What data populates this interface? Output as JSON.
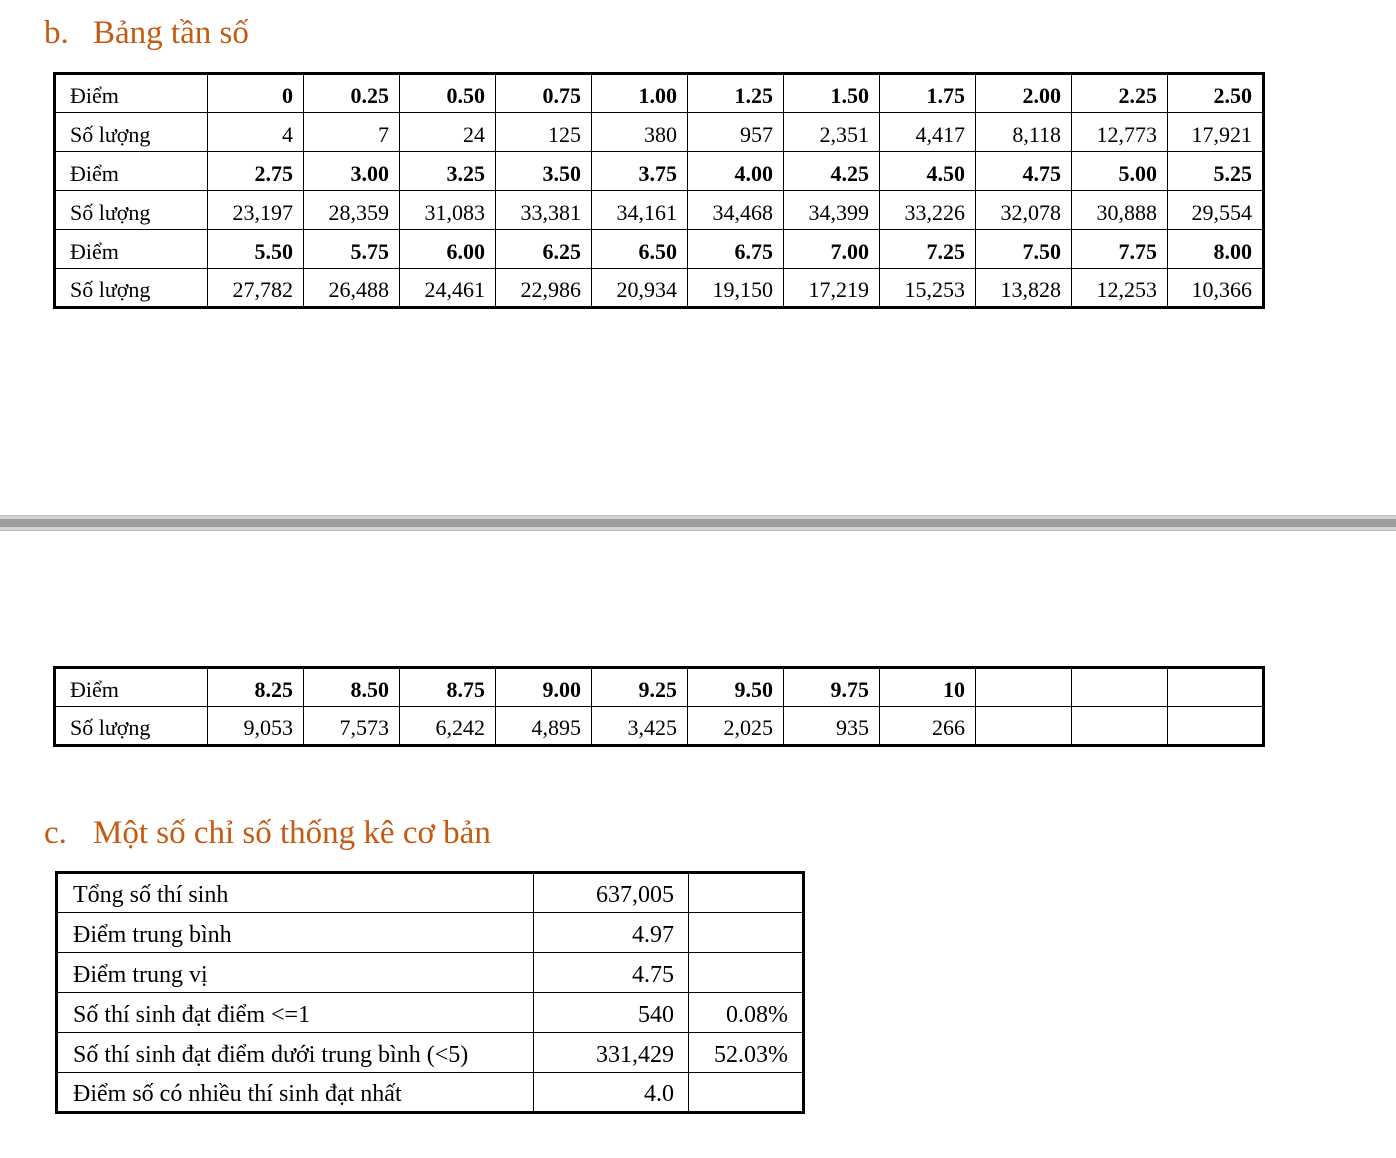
{
  "section_b": {
    "number": "b.",
    "title": "Bảng tần số"
  },
  "freq_tables": [
    {
      "rows": [
        {
          "label": "Điểm",
          "cells": [
            "0",
            "0.25",
            "0.50",
            "0.75",
            "1.00",
            "1.25",
            "1.50",
            "1.75",
            "2.00",
            "2.25",
            "2.50"
          ]
        },
        {
          "label": "Số lượng",
          "cells": [
            "4",
            "7",
            "24",
            "125",
            "380",
            "957",
            "2,351",
            "4,417",
            "8,118",
            "12,773",
            "17,921"
          ]
        },
        {
          "label": "Điểm",
          "cells": [
            "2.75",
            "3.00",
            "3.25",
            "3.50",
            "3.75",
            "4.00",
            "4.25",
            "4.50",
            "4.75",
            "5.00",
            "5.25"
          ]
        },
        {
          "label": "Số lượng",
          "cells": [
            "23,197",
            "28,359",
            "31,083",
            "33,381",
            "34,161",
            "34,468",
            "34,399",
            "33,226",
            "32,078",
            "30,888",
            "29,554"
          ]
        },
        {
          "label": "Điểm",
          "cells": [
            "5.50",
            "5.75",
            "6.00",
            "6.25",
            "6.50",
            "6.75",
            "7.00",
            "7.25",
            "7.50",
            "7.75",
            "8.00"
          ]
        },
        {
          "label": "Số lượng",
          "cells": [
            "27,782",
            "26,488",
            "24,461",
            "22,986",
            "20,934",
            "19,150",
            "17,219",
            "15,253",
            "13,828",
            "12,253",
            "10,366"
          ]
        }
      ]
    },
    {
      "rows": [
        {
          "label": "Điểm",
          "cells": [
            "8.25",
            "8.50",
            "8.75",
            "9.00",
            "9.25",
            "9.50",
            "9.75",
            "10",
            "",
            "",
            ""
          ]
        },
        {
          "label": "Số lượng",
          "cells": [
            "9,053",
            "7,573",
            "6,242",
            "4,895",
            "3,425",
            "2,025",
            "935",
            "266",
            "",
            "",
            ""
          ]
        }
      ]
    }
  ],
  "section_c": {
    "number": "c.",
    "title": "Một số chỉ số thống kê cơ bản"
  },
  "stats": [
    {
      "label": "Tổng số thí sinh",
      "value": "637,005",
      "pct": ""
    },
    {
      "label": "Điểm trung bình",
      "value": "4.97",
      "pct": ""
    },
    {
      "label": "Điểm trung vị",
      "value": "4.75",
      "pct": ""
    },
    {
      "label": "Số thí sinh đạt điểm <=1",
      "value": "540",
      "pct": "0.08%"
    },
    {
      "label": "Số thí sinh đạt điểm dưới trung bình (<5)",
      "value": "331,429",
      "pct": "52.03%"
    },
    {
      "label": "Điểm số có nhiều thí sinh đạt nhất",
      "value": "4.0",
      "pct": ""
    }
  ]
}
